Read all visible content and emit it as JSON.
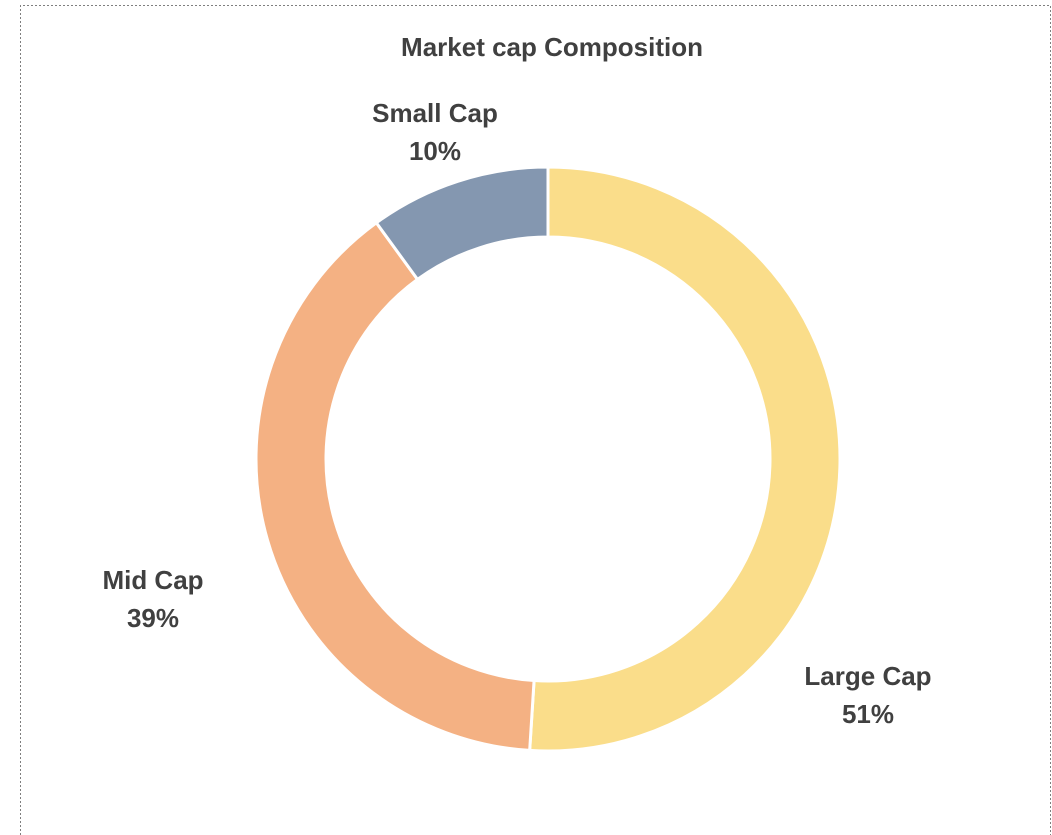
{
  "chart_data": {
    "type": "donut",
    "title": "Market cap Composition",
    "categories": [
      "Large Cap",
      "Mid Cap",
      "Small Cap"
    ],
    "values": [
      51,
      39,
      10
    ],
    "value_labels": [
      "51%",
      "39%",
      "10%"
    ],
    "colors": [
      "#fadd8a",
      "#f4b183",
      "#8497b0"
    ]
  }
}
